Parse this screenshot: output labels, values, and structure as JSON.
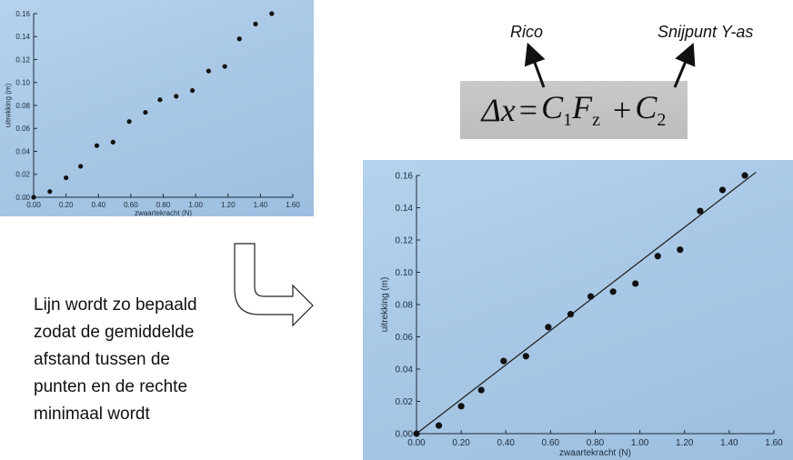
{
  "formula": {
    "lhs": "Δx",
    "eq": "=",
    "c1": "C",
    "c1_sub": "1",
    "f": "F",
    "f_sub": "z",
    "plus": "+",
    "c2": "C",
    "c2_sub": "2"
  },
  "labels": {
    "rico": "Rico",
    "snijpunt": "Snijpunt Y-as"
  },
  "explanation": {
    "lines": [
      "Lijn wordt zo bepaald",
      "zodat de gemiddelde",
      "afstand tussen de",
      "punten en de rechte",
      "minimaal wordt"
    ]
  },
  "colors": {
    "photo_bg": "#a9c8e6",
    "point": "#111111",
    "fit_line": "#1a1a1a"
  },
  "chart_data": [
    {
      "type": "scatter",
      "title": "",
      "xlabel": "zwaartekracht (N)",
      "ylabel": "uitrekking (m)",
      "xlim": [
        0,
        1.6
      ],
      "ylim": [
        0,
        0.16
      ],
      "x_ticks": [
        "0.00",
        "0.20",
        "0.40",
        "0.60",
        "0.80",
        "1.00",
        "1.20",
        "1.40",
        "1.60"
      ],
      "y_ticks": [
        "0.00",
        "0.02",
        "0.04",
        "0.06",
        "0.08",
        "0.10",
        "0.12",
        "0.14",
        "0.16"
      ],
      "grid": false,
      "series": [
        {
          "x": [
            0.0,
            0.1,
            0.2,
            0.29,
            0.39,
            0.49,
            0.59,
            0.69,
            0.78,
            0.88,
            0.98,
            1.08,
            1.18,
            1.27,
            1.37,
            1.47
          ],
          "y": [
            0.0,
            0.005,
            0.017,
            0.027,
            0.045,
            0.048,
            0.066,
            0.074,
            0.085,
            0.088,
            0.093,
            0.11,
            0.114,
            0.138,
            0.151,
            0.16
          ]
        }
      ]
    },
    {
      "type": "scatter",
      "title": "",
      "xlabel": "zwaartekracht (N)",
      "ylabel": "uitrekking (m)",
      "xlim": [
        0,
        1.6
      ],
      "ylim": [
        0,
        0.16
      ],
      "x_ticks": [
        "0.00",
        "0.20",
        "0.40",
        "0.60",
        "0.80",
        "1.00",
        "1.20",
        "1.40",
        "1.60"
      ],
      "y_ticks": [
        "0.00",
        "0.02",
        "0.04",
        "0.06",
        "0.08",
        "0.10",
        "0.12",
        "0.14",
        "0.16"
      ],
      "grid": false,
      "series": [
        {
          "x": [
            0.0,
            0.1,
            0.2,
            0.29,
            0.39,
            0.49,
            0.59,
            0.69,
            0.78,
            0.88,
            0.98,
            1.08,
            1.18,
            1.27,
            1.37,
            1.47
          ],
          "y": [
            0.0,
            0.005,
            0.017,
            0.027,
            0.045,
            0.048,
            0.066,
            0.074,
            0.085,
            0.088,
            0.093,
            0.11,
            0.114,
            0.138,
            0.151,
            0.16
          ]
        }
      ],
      "fit_line": {
        "x": [
          0.0,
          1.52
        ],
        "y": [
          0.0,
          0.162
        ]
      }
    }
  ]
}
